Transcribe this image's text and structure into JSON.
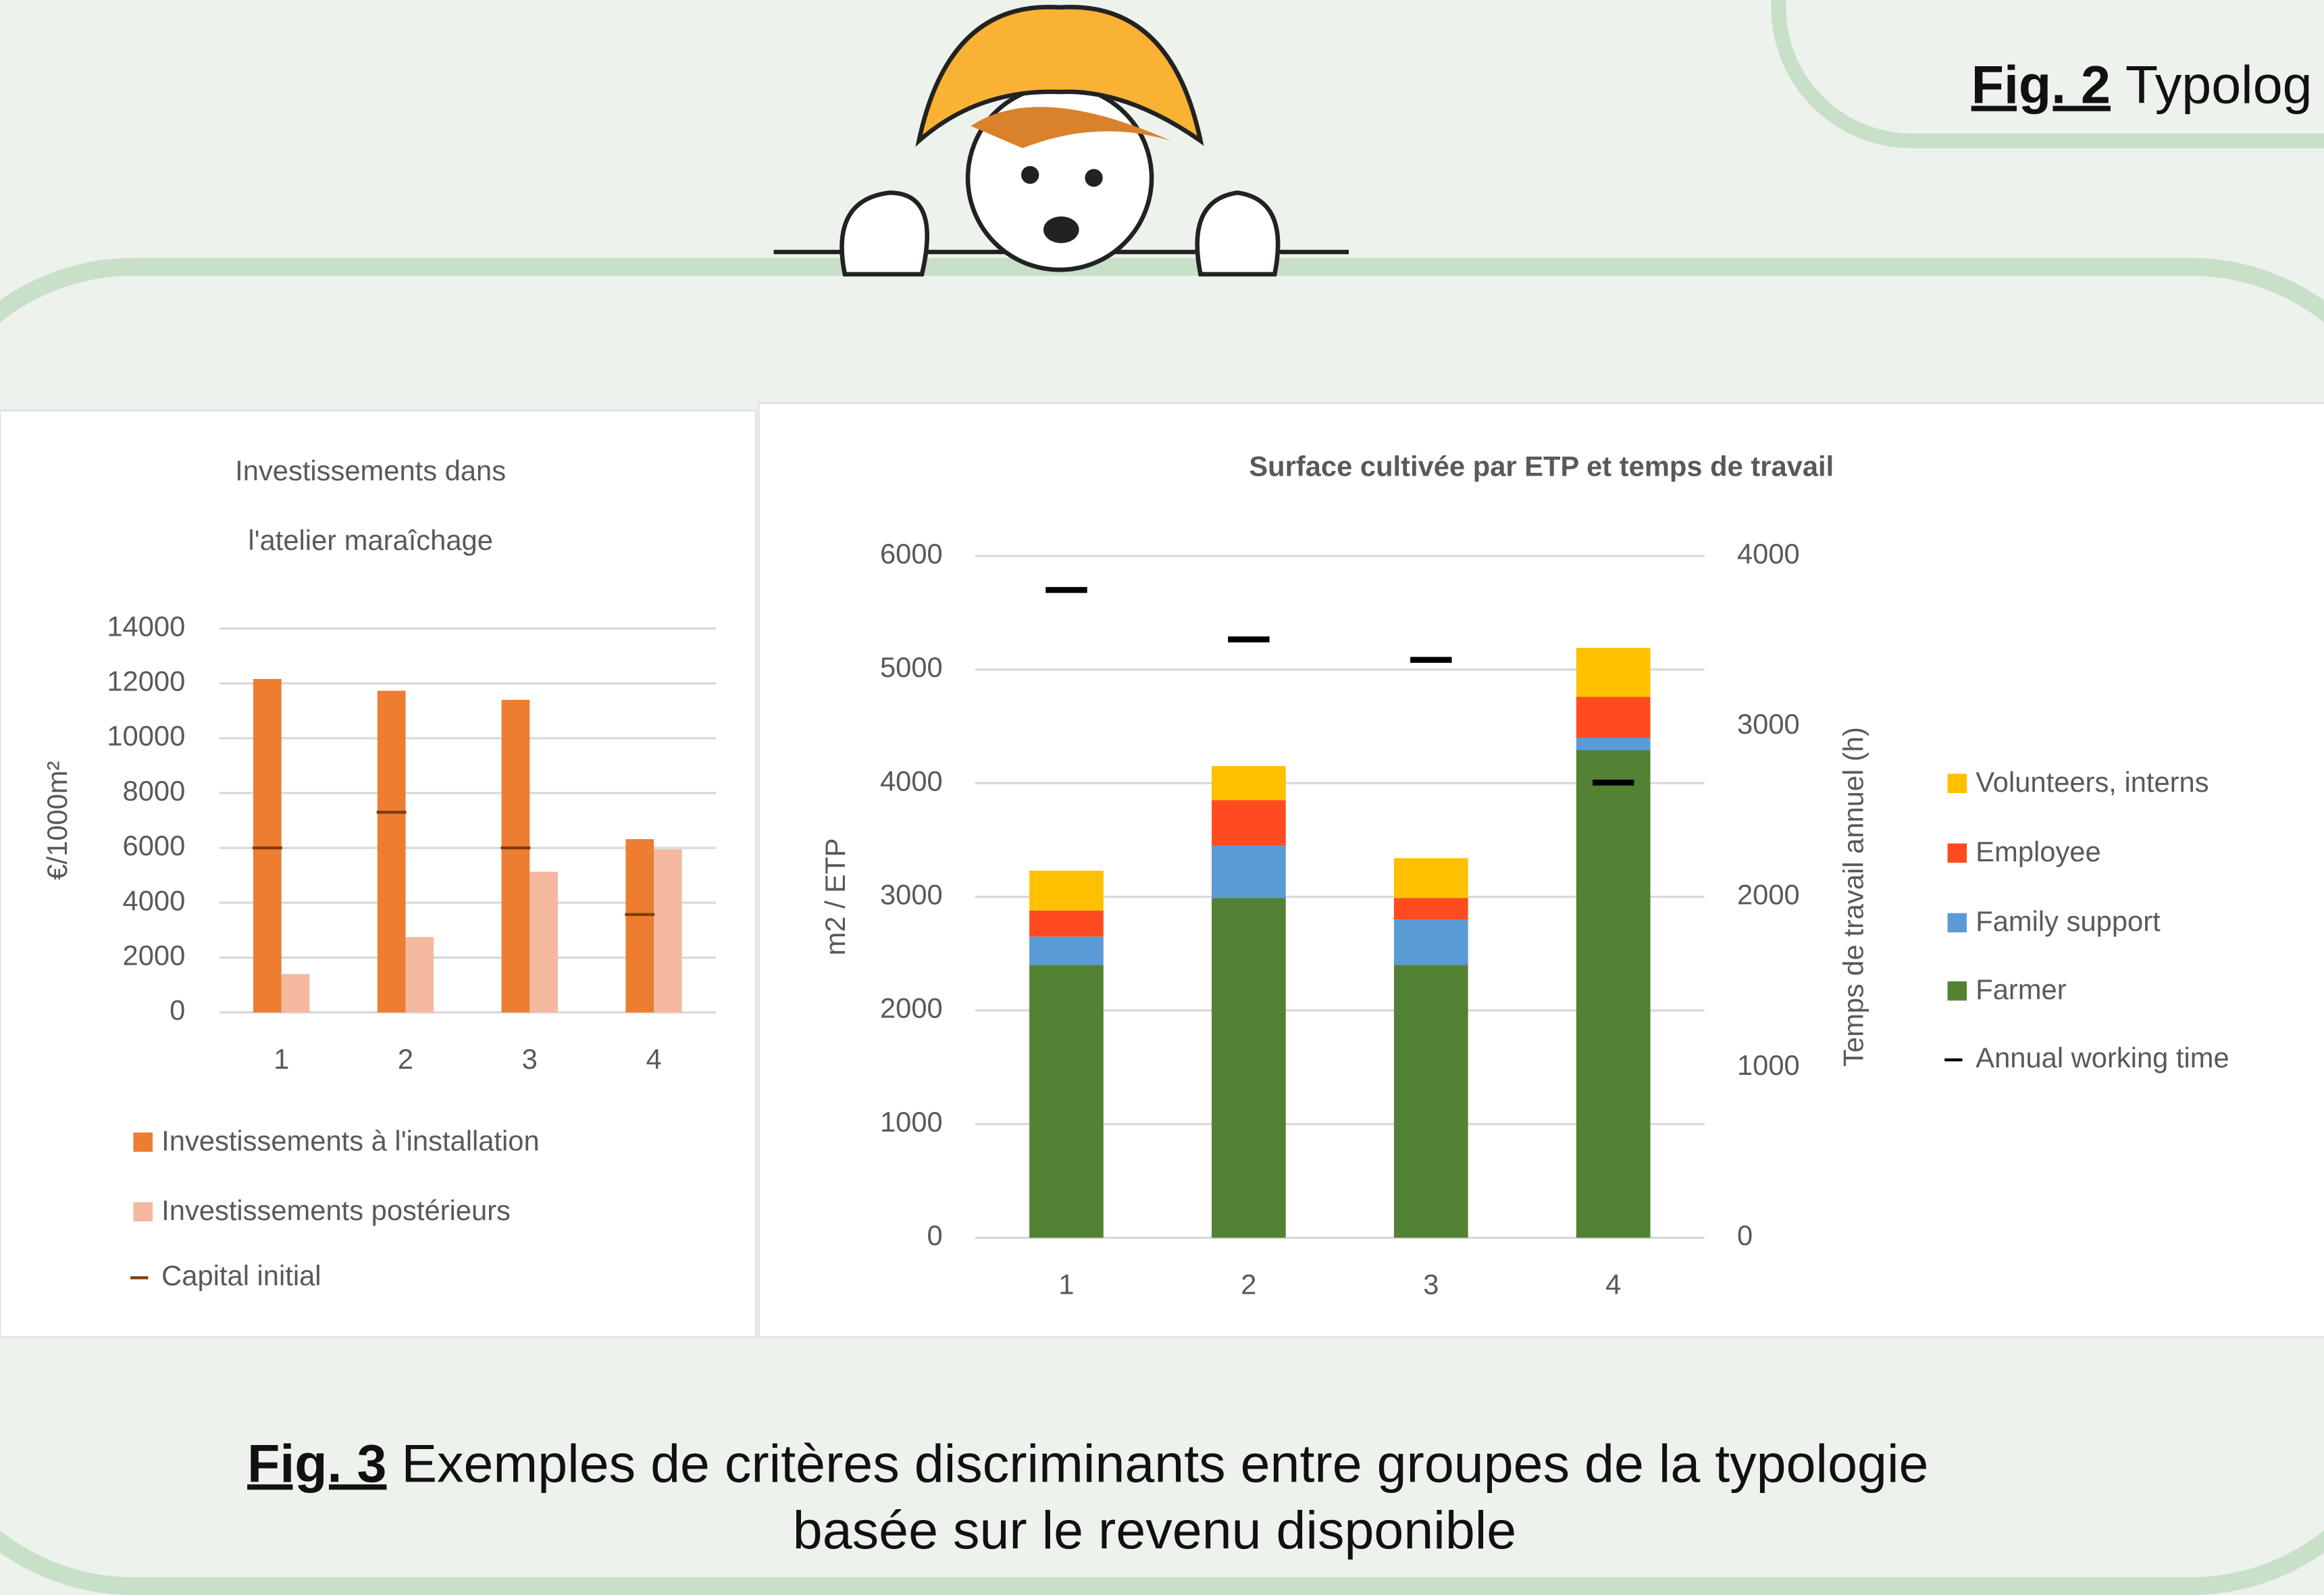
{
  "chart_data": [
    {
      "type": "bar",
      "title": [
        "Investissements dans",
        "l'atelier maraîchage"
      ],
      "y_label": "€/1000m²",
      "categories": [
        "1",
        "2",
        "3",
        "4"
      ],
      "series": [
        {
          "name": "Investissements à l'installation",
          "color": "#ed7d31",
          "values": [
            12160,
            11730,
            11400,
            6320
          ]
        },
        {
          "name": "Investissements postérieurs",
          "color": "#f4b9a0",
          "values": [
            1400,
            2750,
            5130,
            5950
          ]
        },
        {
          "name": "Capital initial",
          "color": "#843c0c",
          "style": "dash",
          "values": [
            6000,
            7300,
            6000,
            3570
          ]
        }
      ],
      "ylim": [
        0,
        14000
      ],
      "yticks": [
        0,
        2000,
        4000,
        6000,
        8000,
        10000,
        12000,
        14000
      ],
      "grid": true
    },
    {
      "type": "stacked_bar",
      "title": "Surface cultivée par ETP et temps de travail",
      "y_label": "m2 / ETP",
      "y2_label": "Temps de travail annuel (h)",
      "categories": [
        "1",
        "2",
        "3",
        "4"
      ],
      "series": [
        {
          "name": "Farmer",
          "color": "#548235",
          "values": [
            2400,
            2990,
            2400,
            4290
          ]
        },
        {
          "name": "Family support",
          "color": "#5b9bd5",
          "values": [
            250,
            460,
            400,
            110
          ]
        },
        {
          "name": "Employee",
          "color": "#ff4b1f",
          "values": [
            230,
            400,
            190,
            360
          ]
        },
        {
          "name": "Volunteers, interns",
          "color": "#ffc000",
          "values": [
            350,
            300,
            350,
            430
          ]
        },
        {
          "name": "Annual working time",
          "color": "#000000",
          "style": "dash",
          "axis": "y2",
          "values": [
            3800,
            3510,
            3390,
            2670
          ]
        }
      ],
      "ylim": [
        0,
        6000
      ],
      "yticks": [
        0,
        1000,
        2000,
        3000,
        4000,
        5000,
        6000
      ],
      "y2lim": [
        0,
        4000
      ],
      "y2ticks": [
        0,
        1000,
        2000,
        3000,
        4000
      ],
      "grid": true
    }
  ],
  "fig2_caption": {
    "label": "Fig. 2",
    "text": "Typolog"
  },
  "fig3_caption": {
    "label": "Fig. 3",
    "lines": [
      "Exemples de critères discriminants entre groupes de la typologie",
      "basée sur le revenu disponible"
    ]
  }
}
